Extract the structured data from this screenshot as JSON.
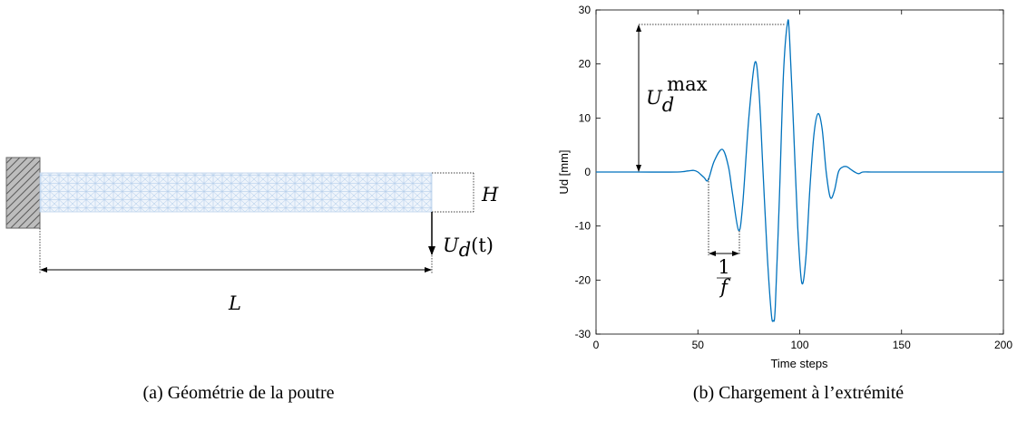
{
  "figure_a": {
    "caption": "(a) Géométrie de la poutre",
    "label_H": "H",
    "label_L": "L",
    "label_Ud": "U",
    "label_Ud_sub": "d",
    "label_Ud_arg": "(t)"
  },
  "figure_b": {
    "caption": "(b) Chargement à l’extrémité",
    "annot_umax_base": "U",
    "annot_umax_sub": "d",
    "annot_umax_sup": "max",
    "annot_freq_num": "1",
    "annot_freq_den": "f"
  },
  "chart_data": {
    "type": "line",
    "xlabel": "Time steps",
    "ylabel": "Ud [mm]",
    "xlim": [
      0,
      200
    ],
    "ylim": [
      -30,
      30
    ],
    "xticks": [
      "0",
      "50",
      "100",
      "150",
      "200"
    ],
    "yticks": [
      "30",
      "20",
      "10",
      "0",
      "-10",
      "-20",
      "-30"
    ],
    "xtick_values": [
      0,
      50,
      100,
      150,
      200
    ],
    "ytick_values": [
      30,
      20,
      10,
      0,
      -10,
      -20,
      -30
    ],
    "line_color": "#0072bd",
    "series": [
      {
        "x": [
          0,
          20,
          40,
          45,
          48,
          50,
          53,
          55,
          58,
          62,
          65,
          67,
          70,
          72,
          75,
          78,
          80,
          82,
          84,
          86,
          87,
          88,
          90,
          92,
          94,
          95,
          97,
          99,
          101,
          103,
          105,
          107,
          109,
          111,
          113,
          115,
          117,
          119,
          121,
          123,
          125,
          127,
          129,
          131,
          135,
          140,
          160,
          200
        ],
        "y": [
          0,
          0,
          0,
          0.2,
          0.3,
          0,
          -1.0,
          -1.5,
          2.0,
          4.2,
          1.0,
          -4.0,
          -10.8,
          -6.0,
          10.0,
          20.3,
          15.0,
          0,
          -15.0,
          -26.0,
          -27.5,
          -25.0,
          -5.0,
          18.0,
          27.6,
          25.0,
          8.0,
          -10.0,
          -20.5,
          -16.0,
          -3.0,
          7.0,
          10.8,
          8.0,
          0,
          -4.7,
          -3.5,
          0,
          0.9,
          1.0,
          0.5,
          0,
          -0.3,
          0,
          0,
          0,
          0,
          0
        ]
      }
    ],
    "grid": false
  }
}
